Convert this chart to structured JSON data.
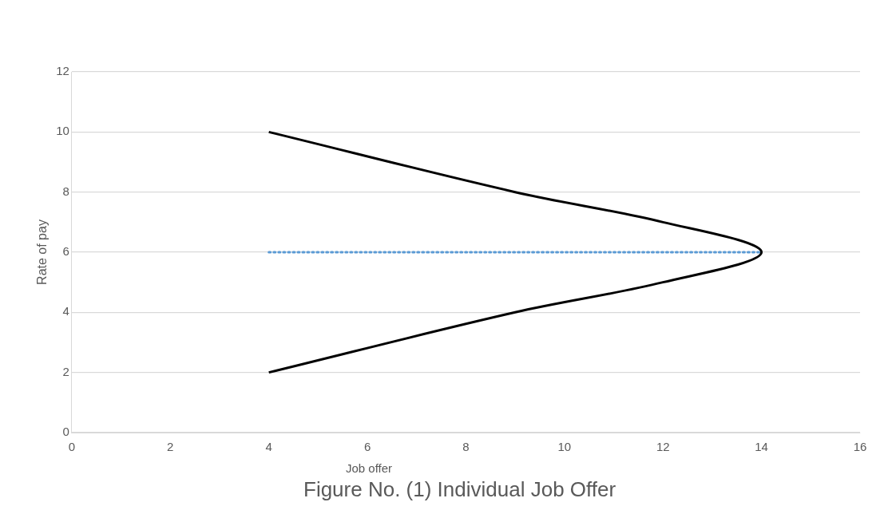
{
  "chart_data": {
    "type": "line",
    "title": "Figure No. (1) Individual Job Offer",
    "xlabel": "Job offer",
    "ylabel": "Rate of pay",
    "series": [
      {
        "color": "#000000",
        "x": [
          4,
          9,
          12,
          14,
          12,
          9,
          4
        ],
        "values": [
          10,
          8,
          7,
          6,
          5,
          4,
          2
        ],
        "line_style": "solid"
      },
      {
        "color": "#5b9bd5",
        "x": [
          4,
          14
        ],
        "values": [
          6,
          6
        ],
        "line_style": "dotted"
      }
    ],
    "xlim": [
      0,
      16
    ],
    "xticks": [
      0,
      2,
      4,
      6,
      8,
      10,
      12,
      14,
      16
    ],
    "ylim": [
      0,
      12
    ],
    "yticks": [
      0,
      2,
      4,
      6,
      8,
      10,
      12
    ],
    "grid": "y",
    "legend": false,
    "marker": "none"
  }
}
